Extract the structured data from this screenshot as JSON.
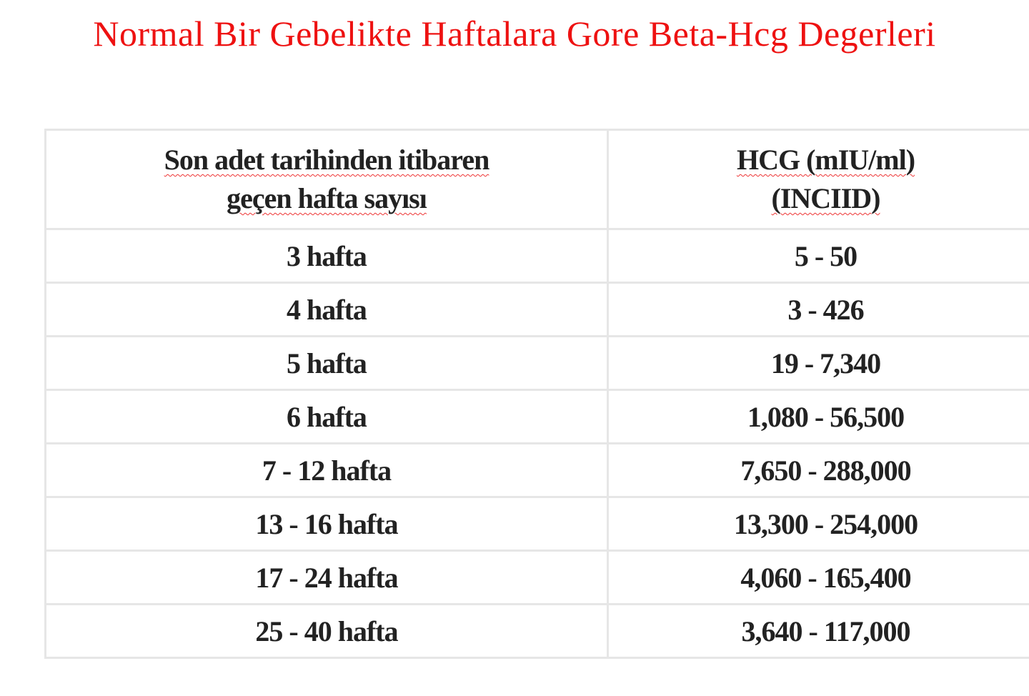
{
  "title": "Normal Bir Gebelikte Haftalara Gore Beta-Hcg Degerleri",
  "table": {
    "headers": [
      {
        "line1": "Son adet tarihinden itibaren",
        "line2": "geçen hafta sayısı"
      },
      {
        "line1": "HCG (mIU/ml)",
        "line2": "(INCIID)"
      }
    ],
    "rows": [
      {
        "week": "3 hafta",
        "hcg": "5 - 50"
      },
      {
        "week": "4 hafta",
        "hcg": "3 - 426"
      },
      {
        "week": "5 hafta",
        "hcg": "19 - 7,340"
      },
      {
        "week": "6 hafta",
        "hcg": "1,080 - 56,500"
      },
      {
        "week": "7 - 12 hafta",
        "hcg": "7,650 - 288,000"
      },
      {
        "week": "13 - 16 hafta",
        "hcg": "13,300 - 254,000"
      },
      {
        "week": "17 - 24 hafta",
        "hcg": "4,060 - 165,400"
      },
      {
        "week": "25 - 40 hafta",
        "hcg": "3,640 - 117,000"
      }
    ]
  },
  "colors": {
    "title": "#ee1111",
    "grid": "#e6e6e6",
    "text": "#222222"
  }
}
